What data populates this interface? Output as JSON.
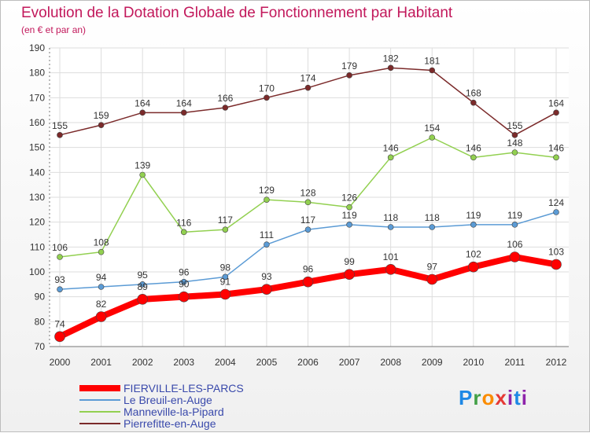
{
  "header": {
    "title": "Evolution de la Dotation Globale de Fonctionnement par Habitant",
    "subtitle": "(en € et par an)"
  },
  "brand": {
    "logo_text": "Proxiti"
  },
  "chart_data": {
    "type": "line",
    "title": "Evolution de la Dotation Globale de Fonctionnement par Habitant",
    "subtitle": "(en € et par an)",
    "xlabel": "",
    "ylabel": "",
    "ylim": [
      70,
      190
    ],
    "yticks": [
      70,
      80,
      90,
      100,
      110,
      120,
      130,
      140,
      150,
      160,
      170,
      180,
      190
    ],
    "grid": true,
    "legend_position": "bottom-left",
    "x": [
      "2000",
      "2001",
      "2002",
      "2003",
      "2004",
      "2005",
      "2006",
      "2007",
      "2008",
      "2009",
      "2010",
      "2011",
      "2012"
    ],
    "series": [
      {
        "name": "FIERVILLE-LES-PARCS",
        "color": "#ff0000",
        "values": [
          74,
          82,
          89,
          90,
          91,
          93,
          96,
          99,
          101,
          97,
          102,
          106,
          103
        ]
      },
      {
        "name": "Le Breuil-en-Auge",
        "color": "#5b9bd5",
        "values": [
          93,
          94,
          95,
          96,
          98,
          111,
          117,
          119,
          118,
          118,
          119,
          119,
          124
        ]
      },
      {
        "name": "Manneville-la-Pipard",
        "color": "#92d050",
        "values": [
          106,
          108,
          139,
          116,
          117,
          129,
          128,
          126,
          146,
          154,
          146,
          148,
          146
        ]
      },
      {
        "name": "Pierrefitte-en-Auge",
        "color": "#7b2a2a",
        "values": [
          155,
          159,
          164,
          164,
          166,
          170,
          174,
          179,
          182,
          181,
          168,
          155,
          164
        ]
      }
    ]
  }
}
